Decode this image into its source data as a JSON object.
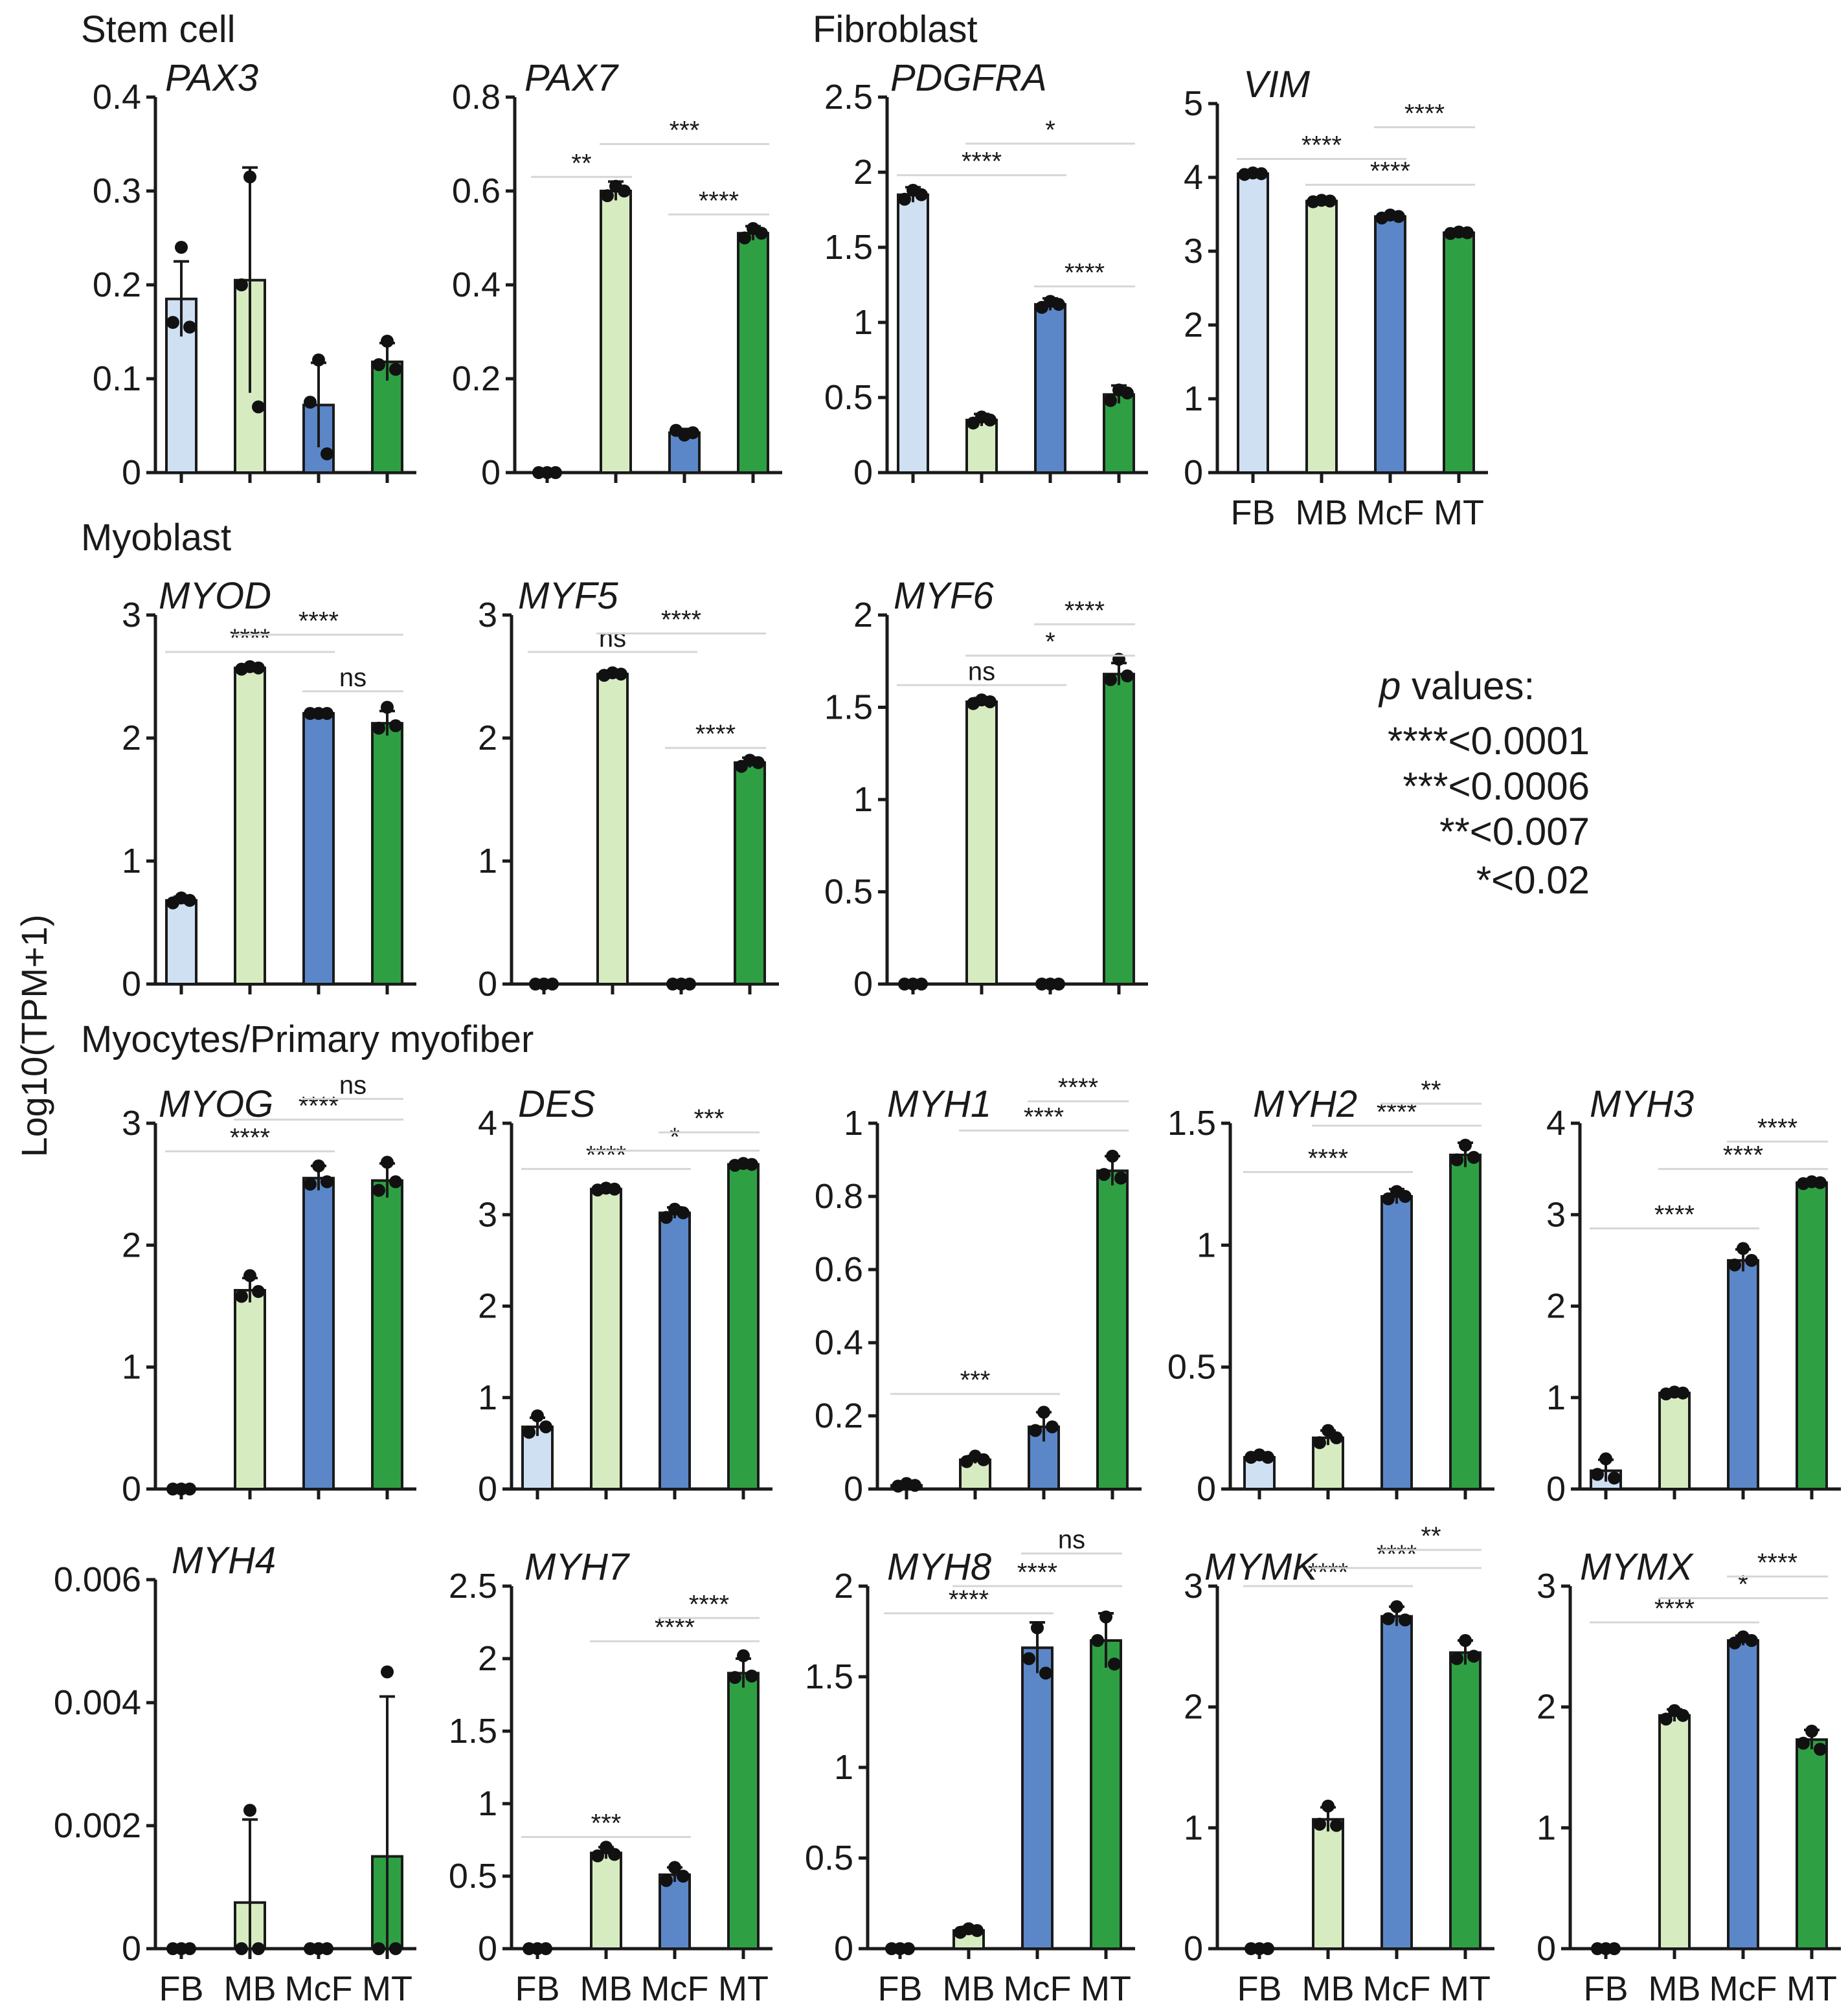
{
  "sections": [
    {
      "label": "Stem cell"
    },
    {
      "label": "Fibroblast"
    },
    {
      "label": "Myoblast"
    },
    {
      "label": "Myocytes/Primary myofiber"
    }
  ],
  "y_axis_label": "Log10(TPM+1)",
  "legend": {
    "title_italic": "p",
    "title_rest": " values:",
    "entries": [
      "****<0.0001",
      "***<0.0006",
      "**<0.007",
      "*<0.02"
    ]
  },
  "colors": {
    "FB": "#cfe0f3",
    "MB": "#d7ebc1",
    "McF": "#5b87c9",
    "MT": "#2ea043"
  },
  "chart_data": [
    {
      "type": "bar",
      "title": "PAX3",
      "categories": [
        "FB",
        "MB",
        "McF",
        "MT"
      ],
      "show_categories": false,
      "values": [
        0.185,
        0.205,
        0.072,
        0.118
      ],
      "errors": [
        0.04,
        0.12,
        0.045,
        0.02
      ],
      "points": [
        [
          0.24,
          0.16,
          0.155
        ],
        [
          0.315,
          0.2,
          0.07
        ],
        [
          0.12,
          0.075,
          0.02
        ],
        [
          0.14,
          0.115,
          0.11
        ]
      ],
      "ylim": [
        0,
        0.4
      ],
      "ytick_labels": [
        "0",
        "0.1",
        "0.2",
        "0.3",
        "0.4"
      ],
      "sig": []
    },
    {
      "type": "bar",
      "title": "PAX7",
      "categories": [
        "FB",
        "MB",
        "McF",
        "MT"
      ],
      "show_categories": false,
      "values": [
        0.0,
        0.6,
        0.085,
        0.51
      ],
      "errors": [
        0.004,
        0.02,
        0.008,
        0.015
      ],
      "points": [
        [
          0.0,
          0.0,
          0.0
        ],
        [
          0.61,
          0.59,
          0.6
        ],
        [
          0.08,
          0.09,
          0.085
        ],
        [
          0.52,
          0.5,
          0.51
        ]
      ],
      "ylim": [
        0,
        0.8
      ],
      "ytick_labels": [
        "0",
        "0.2",
        "0.4",
        "0.6",
        "0.8"
      ],
      "sig": [
        {
          "from": 0,
          "to": 1,
          "text": "**",
          "level": 0.63
        },
        {
          "from": 1,
          "to": 3,
          "text": "***",
          "level": 0.7
        },
        {
          "from": 2,
          "to": 3,
          "text": "****",
          "level": 0.55
        }
      ]
    },
    {
      "type": "bar",
      "title": "PDGFRA",
      "categories": [
        "FB",
        "MB",
        "McF",
        "MT"
      ],
      "show_categories": false,
      "values": [
        1.85,
        0.35,
        1.12,
        0.52
      ],
      "errors": [
        0.05,
        0.04,
        0.04,
        0.06
      ],
      "points": [
        [
          1.88,
          1.82,
          1.85
        ],
        [
          0.37,
          0.33,
          0.35
        ],
        [
          1.14,
          1.1,
          1.12
        ],
        [
          0.55,
          0.48,
          0.53
        ]
      ],
      "ylim": [
        0,
        2.5
      ],
      "ytick_labels": [
        "0",
        "0.5",
        "1",
        "1.5",
        "2",
        "2.5"
      ],
      "sig": [
        {
          "from": 0,
          "to": 2,
          "text": "****",
          "level": 1.98
        },
        {
          "from": 1,
          "to": 3,
          "text": "*",
          "level": 2.19
        },
        {
          "from": 2,
          "to": 3,
          "text": "****",
          "level": 1.24
        }
      ]
    },
    {
      "type": "bar",
      "title": "VIM",
      "categories": [
        "FB",
        "MB",
        "McF",
        "MT"
      ],
      "show_categories": true,
      "values": [
        4.05,
        3.68,
        3.47,
        3.25
      ],
      "errors": [
        0.03,
        0.02,
        0.04,
        0.03
      ],
      "points": [
        [
          4.06,
          4.04,
          4.05
        ],
        [
          3.69,
          3.67,
          3.68
        ],
        [
          3.49,
          3.45,
          3.47
        ],
        [
          3.26,
          3.24,
          3.25
        ]
      ],
      "ylim": [
        0,
        5
      ],
      "ytick_labels": [
        "0",
        "1",
        "2",
        "3",
        "4",
        "5"
      ],
      "sig": [
        {
          "from": 0,
          "to": 2,
          "text": "****",
          "level": 4.25
        },
        {
          "from": 1,
          "to": 3,
          "text": "****",
          "level": 3.9
        },
        {
          "from": 2,
          "to": 3,
          "text": "****",
          "level": 4.68
        }
      ]
    },
    {
      "type": "bar",
      "title": "MYOD",
      "categories": [
        "FB",
        "MB",
        "McF",
        "MT"
      ],
      "show_categories": false,
      "values": [
        0.68,
        2.57,
        2.2,
        2.12
      ],
      "errors": [
        0.03,
        0.02,
        0.01,
        0.1
      ],
      "points": [
        [
          0.7,
          0.66,
          0.68
        ],
        [
          2.58,
          2.56,
          2.57
        ],
        [
          2.2,
          2.2,
          2.2
        ],
        [
          2.25,
          2.08,
          2.1
        ]
      ],
      "ylim": [
        0,
        3
      ],
      "ytick_labels": [
        "0",
        "1",
        "2",
        "3"
      ],
      "sig": [
        {
          "from": 0,
          "to": 2,
          "text": "****",
          "level": 2.7
        },
        {
          "from": 1,
          "to": 3,
          "text": "****",
          "level": 2.84
        },
        {
          "from": 2,
          "to": 3,
          "text": "ns",
          "level": 2.38
        }
      ]
    },
    {
      "type": "bar",
      "title": "MYF5",
      "categories": [
        "FB",
        "MB",
        "McF",
        "MT"
      ],
      "show_categories": false,
      "values": [
        0.0,
        2.52,
        0.0,
        1.8
      ],
      "errors": [
        0.01,
        0.02,
        0.01,
        0.04
      ],
      "points": [
        [
          0.0,
          0.0,
          0.0
        ],
        [
          2.53,
          2.51,
          2.52
        ],
        [
          0.0,
          0.0,
          0.0
        ],
        [
          1.82,
          1.77,
          1.8
        ]
      ],
      "ylim": [
        0,
        3
      ],
      "ytick_labels": [
        "0",
        "1",
        "2",
        "3"
      ],
      "sig": [
        {
          "from": 0,
          "to": 2,
          "text": "ns",
          "level": 2.7
        },
        {
          "from": 1,
          "to": 3,
          "text": "****",
          "level": 2.85
        },
        {
          "from": 2,
          "to": 3,
          "text": "****",
          "level": 1.92
        }
      ]
    },
    {
      "type": "bar",
      "title": "MYF6",
      "categories": [
        "FB",
        "MB",
        "McF",
        "MT"
      ],
      "show_categories": false,
      "values": [
        0.0,
        1.53,
        0.0,
        1.68
      ],
      "errors": [
        0.01,
        0.02,
        0.01,
        0.06
      ],
      "points": [
        [
          0.0,
          0.0,
          0.0
        ],
        [
          1.54,
          1.52,
          1.53
        ],
        [
          0.0,
          0.0,
          0.0
        ],
        [
          1.76,
          1.65,
          1.67
        ]
      ],
      "ylim": [
        0,
        2
      ],
      "ytick_labels": [
        "0",
        "0.5",
        "1",
        "1.5",
        "2"
      ],
      "sig": [
        {
          "from": 0,
          "to": 2,
          "text": "ns",
          "level": 1.62
        },
        {
          "from": 1,
          "to": 3,
          "text": "*",
          "level": 1.78
        },
        {
          "from": 2,
          "to": 3,
          "text": "****",
          "level": 1.95
        }
      ]
    },
    {
      "type": "bar",
      "title": "MYOG",
      "categories": [
        "FB",
        "MB",
        "McF",
        "MT"
      ],
      "show_categories": false,
      "values": [
        0.0,
        1.63,
        2.55,
        2.53
      ],
      "errors": [
        0.01,
        0.1,
        0.1,
        0.14
      ],
      "points": [
        [
          0.0,
          0.0,
          0.0
        ],
        [
          1.75,
          1.58,
          1.62
        ],
        [
          2.65,
          2.5,
          2.52
        ],
        [
          2.68,
          2.45,
          2.52
        ]
      ],
      "ylim": [
        0,
        3
      ],
      "ytick_labels": [
        "0",
        "1",
        "2",
        "3"
      ],
      "sig": [
        {
          "from": 0,
          "to": 2,
          "text": "****",
          "level": 2.77
        },
        {
          "from": 1,
          "to": 3,
          "text": "****",
          "level": 3.03
        },
        {
          "from": 2,
          "to": 3,
          "text": "ns",
          "level": 3.2
        }
      ]
    },
    {
      "type": "bar",
      "title": "DES",
      "categories": [
        "FB",
        "MB",
        "McF",
        "MT"
      ],
      "show_categories": false,
      "values": [
        0.68,
        3.28,
        3.02,
        3.55
      ],
      "errors": [
        0.1,
        0.02,
        0.06,
        0.02
      ],
      "points": [
        [
          0.8,
          0.62,
          0.68
        ],
        [
          3.29,
          3.27,
          3.28
        ],
        [
          3.06,
          2.97,
          3.02
        ],
        [
          3.56,
          3.54,
          3.55
        ]
      ],
      "ylim": [
        0,
        4
      ],
      "ytick_labels": [
        "0",
        "1",
        "2",
        "3",
        "4"
      ],
      "sig": [
        {
          "from": 0,
          "to": 2,
          "text": "****",
          "level": 3.5
        },
        {
          "from": 1,
          "to": 3,
          "text": "*",
          "level": 3.7
        },
        {
          "from": 2,
          "to": 3,
          "text": "***",
          "level": 3.9
        }
      ]
    },
    {
      "type": "bar",
      "title": "MYH1",
      "categories": [
        "FB",
        "MB",
        "McF",
        "MT"
      ],
      "show_categories": false,
      "values": [
        0.01,
        0.08,
        0.17,
        0.87
      ],
      "errors": [
        0.005,
        0.01,
        0.04,
        0.04
      ],
      "points": [
        [
          0.015,
          0.008,
          0.01
        ],
        [
          0.09,
          0.075,
          0.08
        ],
        [
          0.21,
          0.16,
          0.17
        ],
        [
          0.91,
          0.86,
          0.85
        ]
      ],
      "ylim": [
        0,
        1
      ],
      "ytick_labels": [
        "0",
        "0.2",
        "0.4",
        "0.6",
        "0.8",
        "1"
      ],
      "sig": [
        {
          "from": 0,
          "to": 2,
          "text": "***",
          "level": 0.26
        },
        {
          "from": 1,
          "to": 3,
          "text": "****",
          "level": 0.98
        },
        {
          "from": 2,
          "to": 3,
          "text": "****",
          "level": 1.06
        }
      ]
    },
    {
      "type": "bar",
      "title": "MYH2",
      "categories": [
        "FB",
        "MB",
        "McF",
        "MT"
      ],
      "show_categories": false,
      "values": [
        0.13,
        0.21,
        1.2,
        1.37
      ],
      "errors": [
        0.01,
        0.03,
        0.03,
        0.05
      ],
      "points": [
        [
          0.14,
          0.13,
          0.13
        ],
        [
          0.24,
          0.19,
          0.21
        ],
        [
          1.22,
          1.19,
          1.2
        ],
        [
          1.41,
          1.35,
          1.36
        ]
      ],
      "ylim": [
        0,
        1.5
      ],
      "ytick_labels": [
        "0",
        "0.5",
        "1",
        "1.5"
      ],
      "sig": [
        {
          "from": 0,
          "to": 2,
          "text": "****",
          "level": 1.3
        },
        {
          "from": 1,
          "to": 3,
          "text": "****",
          "level": 1.49
        },
        {
          "from": 2,
          "to": 3,
          "text": "**",
          "level": 1.58
        }
      ]
    },
    {
      "type": "bar",
      "title": "MYH3",
      "categories": [
        "FB",
        "MB",
        "McF",
        "MT"
      ],
      "show_categories": false,
      "values": [
        0.2,
        1.05,
        2.5,
        3.35
      ],
      "errors": [
        0.12,
        0.02,
        0.12,
        0.02
      ],
      "points": [
        [
          0.33,
          0.16,
          0.12
        ],
        [
          1.06,
          1.04,
          1.05
        ],
        [
          2.63,
          2.45,
          2.5
        ],
        [
          3.36,
          3.34,
          3.35
        ]
      ],
      "ylim": [
        0,
        4
      ],
      "ytick_labels": [
        "0",
        "1",
        "2",
        "3",
        "4"
      ],
      "sig": [
        {
          "from": 0,
          "to": 2,
          "text": "****",
          "level": 2.85
        },
        {
          "from": 1,
          "to": 3,
          "text": "****",
          "level": 3.5
        },
        {
          "from": 2,
          "to": 3,
          "text": "****",
          "level": 3.8
        }
      ]
    },
    {
      "type": "bar",
      "title": "MYH4",
      "categories": [
        "FB",
        "MB",
        "McF",
        "MT"
      ],
      "show_categories": true,
      "values": [
        0.0,
        0.00075,
        0.0,
        0.0015
      ],
      "errors": [
        0.0,
        0.00135,
        0.0,
        0.0026
      ],
      "points": [
        [
          0.0,
          0.0,
          0.0
        ],
        [
          0.00225,
          0.0,
          0.0
        ],
        [
          0.0,
          0.0,
          0.0
        ],
        [
          0.0045,
          0.0,
          0.0
        ]
      ],
      "ylim": [
        0,
        0.006
      ],
      "ytick_labels": [
        "0",
        "0.002",
        "0.004",
        "0.006"
      ],
      "sig": []
    },
    {
      "type": "bar",
      "title": "MYH7",
      "categories": [
        "FB",
        "MB",
        "McF",
        "MT"
      ],
      "show_categories": true,
      "values": [
        0.0,
        0.66,
        0.51,
        1.9
      ],
      "errors": [
        0.01,
        0.04,
        0.05,
        0.1
      ],
      "points": [
        [
          0.0,
          0.0,
          0.0
        ],
        [
          0.7,
          0.64,
          0.65
        ],
        [
          0.56,
          0.47,
          0.5
        ],
        [
          2.02,
          1.87,
          1.88
        ]
      ],
      "ylim": [
        0,
        2.5
      ],
      "ytick_labels": [
        "0",
        "0.5",
        "1",
        "1.5",
        "2",
        "2.5"
      ],
      "sig": [
        {
          "from": 0,
          "to": 2,
          "text": "***",
          "level": 0.77
        },
        {
          "from": 1,
          "to": 3,
          "text": "****",
          "level": 2.12
        },
        {
          "from": 2,
          "to": 3,
          "text": "****",
          "level": 2.28
        }
      ]
    },
    {
      "type": "bar",
      "title": "MYH8",
      "categories": [
        "FB",
        "MB",
        "McF",
        "MT"
      ],
      "show_categories": true,
      "values": [
        0.0,
        0.1,
        1.66,
        1.7
      ],
      "errors": [
        0.01,
        0.02,
        0.14,
        0.15
      ],
      "points": [
        [
          0.0,
          0.0,
          0.0
        ],
        [
          0.11,
          0.09,
          0.1
        ],
        [
          1.77,
          1.6,
          1.52
        ],
        [
          1.83,
          1.7,
          1.57
        ]
      ],
      "ylim": [
        0,
        2
      ],
      "ytick_labels": [
        "0",
        "0.5",
        "1",
        "1.5",
        "2"
      ],
      "sig": [
        {
          "from": 0,
          "to": 2,
          "text": "****",
          "level": 1.85
        },
        {
          "from": 1,
          "to": 3,
          "text": "****",
          "level": 2.0
        },
        {
          "from": 2,
          "to": 3,
          "text": "ns",
          "level": 2.18
        }
      ]
    },
    {
      "type": "bar",
      "title": "MYMK",
      "categories": [
        "FB",
        "MB",
        "McF",
        "MT"
      ],
      "show_categories": true,
      "values": [
        0.0,
        1.07,
        2.75,
        2.45
      ],
      "errors": [
        0.01,
        0.1,
        0.08,
        0.1
      ],
      "points": [
        [
          0.0,
          0.0,
          0.0
        ],
        [
          1.18,
          1.03,
          1.02
        ],
        [
          2.83,
          2.73,
          2.72
        ],
        [
          2.55,
          2.4,
          2.42
        ]
      ],
      "ylim": [
        0,
        3
      ],
      "ytick_labels": [
        "0",
        "1",
        "2",
        "3"
      ],
      "sig": [
        {
          "from": 0,
          "to": 2,
          "text": "****",
          "level": 3.0
        },
        {
          "from": 1,
          "to": 3,
          "text": "****",
          "level": 3.15
        },
        {
          "from": 2,
          "to": 3,
          "text": "**",
          "level": 3.3
        }
      ]
    },
    {
      "type": "bar",
      "title": "MYMX",
      "categories": [
        "FB",
        "MB",
        "McF",
        "MT"
      ],
      "show_categories": true,
      "values": [
        0.0,
        1.93,
        2.55,
        1.73
      ],
      "errors": [
        0.01,
        0.05,
        0.04,
        0.08
      ],
      "points": [
        [
          0.0,
          0.0,
          0.0
        ],
        [
          1.97,
          1.9,
          1.93
        ],
        [
          2.58,
          2.53,
          2.55
        ],
        [
          1.8,
          1.7,
          1.65
        ]
      ],
      "ylim": [
        0,
        3
      ],
      "ytick_labels": [
        "0",
        "1",
        "2",
        "3"
      ],
      "sig": [
        {
          "from": 0,
          "to": 2,
          "text": "****",
          "level": 2.7
        },
        {
          "from": 1,
          "to": 3,
          "text": "*",
          "level": 2.9
        },
        {
          "from": 2,
          "to": 3,
          "text": "****",
          "level": 3.08
        }
      ]
    }
  ]
}
